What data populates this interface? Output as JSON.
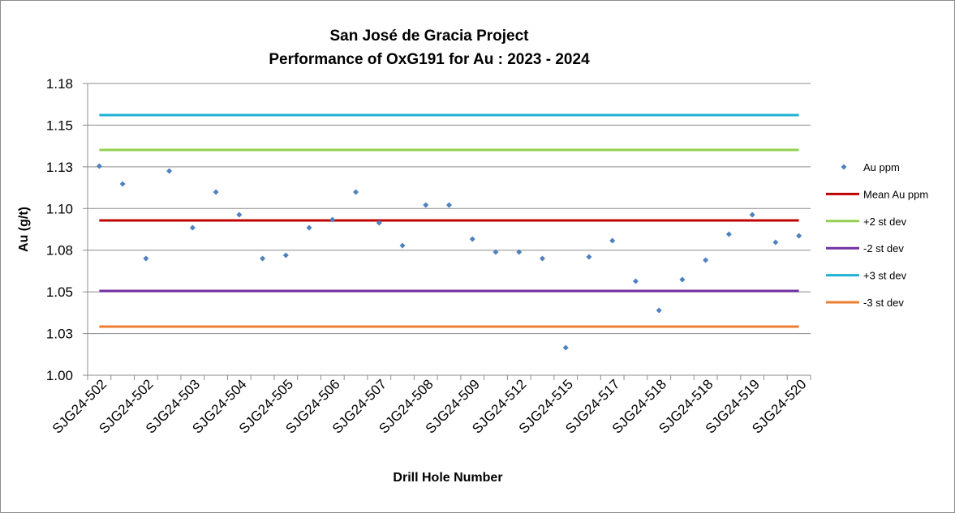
{
  "chart_data": {
    "type": "scatter",
    "title_lines": [
      "San José de Gracia Project",
      "Performance of OxG191 for Au : 2023 - 2024"
    ],
    "xlabel": "Drill Hole Number",
    "ylabel": "Au (g/t)",
    "ylim": [
      1.0,
      1.18
    ],
    "y_ticks": [
      "1.00",
      "1.03",
      "1.05",
      "1.08",
      "1.10",
      "1.13",
      "1.15",
      "1.18"
    ],
    "x_tick_labels": [
      "SJG24-502",
      "SJG24-502",
      "SJG24-503",
      "SJG24-504",
      "SJG24-505",
      "SJG24-506",
      "SJG24-507",
      "SJG24-508",
      "SJG24-509",
      "SJG24-512",
      "SJG24-515",
      "SJG24-517",
      "SJG24-518",
      "SJG24-518",
      "SJG24-519",
      "SJG24-520"
    ],
    "grid": true,
    "legend_position": "right",
    "series": [
      {
        "name": "Au ppm",
        "kind": "points",
        "color": "#4f81bd",
        "values": [
          1.129,
          1.118,
          1.072,
          1.126,
          1.091,
          1.113,
          1.099,
          1.072,
          1.074,
          1.091,
          1.096,
          1.113,
          1.094,
          1.08,
          1.105,
          1.105,
          1.084,
          1.076,
          1.076,
          1.072,
          1.017,
          1.073,
          1.083,
          1.058,
          1.04,
          1.059,
          1.071,
          1.087,
          1.099,
          1.082,
          1.086
        ]
      },
      {
        "name": "Mean Au ppm",
        "kind": "line",
        "color": "#c00000",
        "value": 1.0955
      },
      {
        "name": "+2 st dev",
        "kind": "line",
        "color": "#92d050",
        "value": 1.139
      },
      {
        "name": "-2 st dev",
        "kind": "line",
        "color": "#7030a0",
        "value": 1.052
      },
      {
        "name": "+3 st dev",
        "kind": "line",
        "color": "#1fb1d6",
        "value": 1.1605
      },
      {
        "name": "-3 st dev",
        "kind": "line",
        "color": "#ed7d31",
        "value": 1.03
      }
    ]
  }
}
